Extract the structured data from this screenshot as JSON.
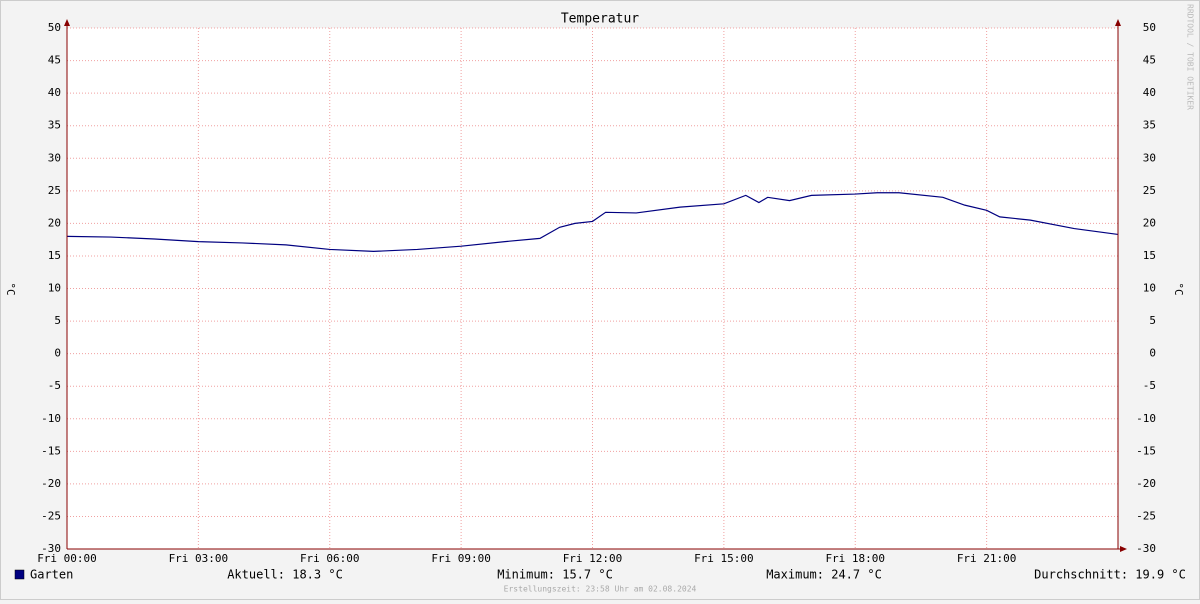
{
  "chart_data": {
    "type": "line",
    "title": "Temperatur",
    "y_label": "°C",
    "y2_label": "°C",
    "x": [
      0,
      1,
      2,
      3,
      4,
      5,
      6,
      7,
      8,
      9,
      10,
      10.8,
      11.25,
      11.6,
      12,
      12.3,
      13,
      14,
      15,
      15.5,
      15.8,
      16,
      16.5,
      17,
      18,
      18.5,
      19,
      20,
      20.5,
      21,
      21.3,
      22,
      23,
      24
    ],
    "series": [
      {
        "name": "Garten",
        "color": "#000080",
        "values": [
          18.0,
          17.9,
          17.6,
          17.2,
          17.0,
          16.7,
          16.0,
          15.7,
          16.0,
          16.5,
          17.2,
          17.7,
          19.4,
          20.0,
          20.3,
          21.7,
          21.6,
          22.5,
          23.0,
          24.3,
          23.2,
          24.0,
          23.5,
          24.3,
          24.5,
          24.7,
          24.7,
          24.0,
          22.8,
          22.0,
          21.0,
          20.5,
          19.2,
          18.3
        ]
      }
    ],
    "xlim": [
      0,
      24
    ],
    "xticks": [
      {
        "value": 0,
        "label": "Fri 00:00"
      },
      {
        "value": 3,
        "label": "Fri 03:00"
      },
      {
        "value": 6,
        "label": "Fri 06:00"
      },
      {
        "value": 9,
        "label": "Fri 09:00"
      },
      {
        "value": 12,
        "label": "Fri 12:00"
      },
      {
        "value": 15,
        "label": "Fri 15:00"
      },
      {
        "value": 18,
        "label": "Fri 18:00"
      },
      {
        "value": 21,
        "label": "Fri 21:00"
      }
    ],
    "ylim": [
      -30,
      50
    ],
    "yticks": [
      -30,
      -25,
      -20,
      -15,
      -10,
      -5,
      0,
      5,
      10,
      15,
      20,
      25,
      30,
      35,
      40,
      45,
      50
    ],
    "y2lim": [
      -30,
      50
    ],
    "y2ticks": [
      -30,
      -25,
      -20,
      -15,
      -10,
      -5,
      0,
      5,
      10,
      15,
      20,
      25,
      30,
      35,
      40,
      45,
      50
    ],
    "grid": true,
    "stats": [
      "Aktuell: 18.3 °C",
      "Minimum: 15.7 °C",
      "Maximum: 24.7 °C",
      "Durchschnitt: 19.9 °C"
    ],
    "footer": "Erstellungszeit: 23:58 Uhr am 02.08.2024",
    "watermark": "RRDTOOL / TOBI OETIKER"
  }
}
